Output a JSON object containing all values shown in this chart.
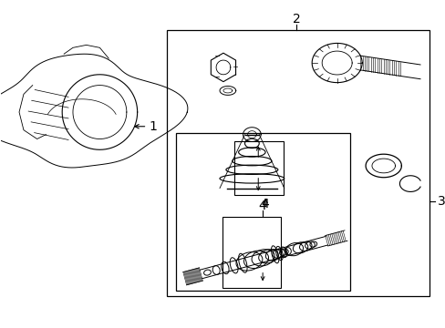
{
  "background_color": "#ffffff",
  "line_color": "#000000",
  "label_color": "#000000",
  "label_1": "1",
  "label_2": "2",
  "label_3": "3",
  "label_4": "4",
  "font_size_labels": 10,
  "figsize": [
    4.89,
    3.6
  ],
  "dpi": 100
}
